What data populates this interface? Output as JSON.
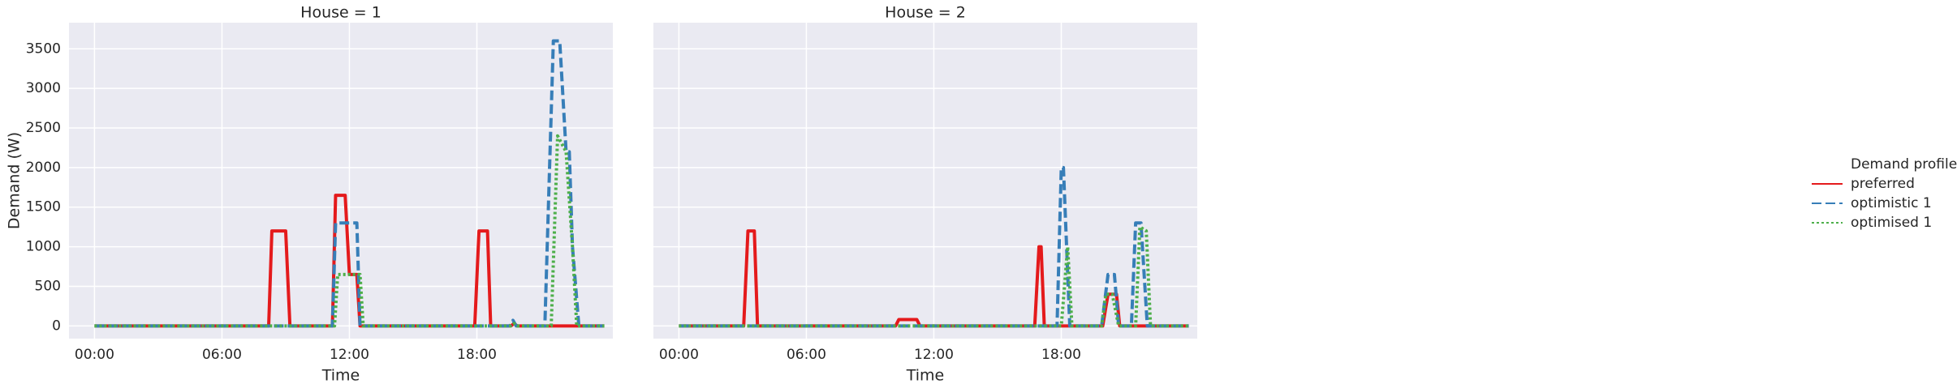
{
  "chart_data": [
    {
      "type": "line",
      "title": "House = 1",
      "xlabel": "Time",
      "ylabel": "Demand (W)",
      "xlim": [
        -1.2,
        24.4
      ],
      "ylim": [
        -160,
        3830
      ],
      "xticks": [
        {
          "value": 0,
          "label": "00:00"
        },
        {
          "value": 6,
          "label": "06:00"
        },
        {
          "value": 12,
          "label": "12:00"
        },
        {
          "value": 18,
          "label": "18:00"
        }
      ],
      "yticks": [
        0,
        500,
        1000,
        1500,
        2000,
        2500,
        3000,
        3500
      ],
      "grid": true,
      "legend": "right",
      "legend_title": "Demand profile",
      "series": [
        {
          "name": "preferred",
          "color": "#e41a1c",
          "dash": "solid",
          "x": [
            0,
            8.2,
            8.35,
            9.0,
            9.2,
            11.2,
            11.35,
            11.8,
            12.0,
            12.35,
            12.5,
            17.9,
            18.1,
            18.5,
            18.65,
            19.6,
            19.75,
            19.9,
            24
          ],
          "values": [
            0,
            0,
            1200,
            1200,
            0,
            0,
            1650,
            1650,
            650,
            650,
            0,
            0,
            1200,
            1200,
            0,
            0,
            30,
            0,
            0
          ]
        },
        {
          "name": "optimistic 1",
          "color": "#377eb8",
          "dash": "dashed",
          "x": [
            0,
            11.2,
            11.35,
            12.35,
            12.5,
            19.55,
            19.7,
            19.85,
            21.2,
            21.6,
            21.9,
            22.2,
            22.35,
            22.5,
            22.8,
            24
          ],
          "values": [
            0,
            0,
            1300,
            1300,
            0,
            0,
            70,
            0,
            0,
            3600,
            3600,
            2200,
            2200,
            1000,
            0,
            0
          ]
        },
        {
          "name": "optimised 1",
          "color": "#4daf4a",
          "dash": "dotted",
          "x": [
            0,
            11.3,
            11.45,
            12.5,
            12.65,
            19.6,
            19.75,
            19.9,
            21.5,
            21.8,
            22.2,
            22.5,
            22.7,
            24
          ],
          "values": [
            0,
            0,
            650,
            650,
            0,
            0,
            30,
            0,
            0,
            2400,
            2200,
            1000,
            0,
            0
          ]
        }
      ]
    },
    {
      "type": "line",
      "title": "House = 2",
      "xlabel": "Time",
      "xlim": [
        -1.2,
        24.4
      ],
      "ylim": [
        -160,
        3830
      ],
      "xticks": [
        {
          "value": 0,
          "label": "00:00"
        },
        {
          "value": 6,
          "label": "06:00"
        },
        {
          "value": 12,
          "label": "12:00"
        },
        {
          "value": 18,
          "label": "18:00"
        }
      ],
      "yticks": [
        0,
        500,
        1000,
        1500,
        2000,
        2500,
        3000,
        3500
      ],
      "grid": true,
      "series": [
        {
          "color": "#e41a1c",
          "dash": "solid",
          "x": [
            0,
            3.05,
            3.25,
            3.55,
            3.7,
            10.2,
            10.35,
            11.2,
            11.35,
            16.75,
            16.95,
            17.05,
            17.2,
            19.95,
            20.2,
            20.6,
            20.75,
            24
          ],
          "values": [
            0,
            0,
            1200,
            1200,
            0,
            0,
            80,
            80,
            0,
            0,
            1000,
            1000,
            0,
            0,
            400,
            400,
            0,
            0
          ]
        },
        {
          "color": "#377eb8",
          "dash": "dashed",
          "x": [
            0,
            17.8,
            18.0,
            18.1,
            18.4,
            19.9,
            20.2,
            20.5,
            20.7,
            21.3,
            21.5,
            21.75,
            22.05,
            24
          ],
          "values": [
            0,
            0,
            2000,
            2000,
            0,
            0,
            650,
            650,
            0,
            0,
            1300,
            1300,
            0,
            0
          ]
        },
        {
          "color": "#4daf4a",
          "dash": "dotted",
          "x": [
            0,
            18.0,
            18.3,
            18.5,
            19.9,
            20.1,
            20.4,
            20.7,
            21.5,
            21.7,
            22.0,
            22.2,
            24
          ],
          "values": [
            0,
            0,
            1000,
            0,
            0,
            400,
            400,
            0,
            0,
            1250,
            1200,
            0,
            0
          ]
        }
      ]
    }
  ]
}
